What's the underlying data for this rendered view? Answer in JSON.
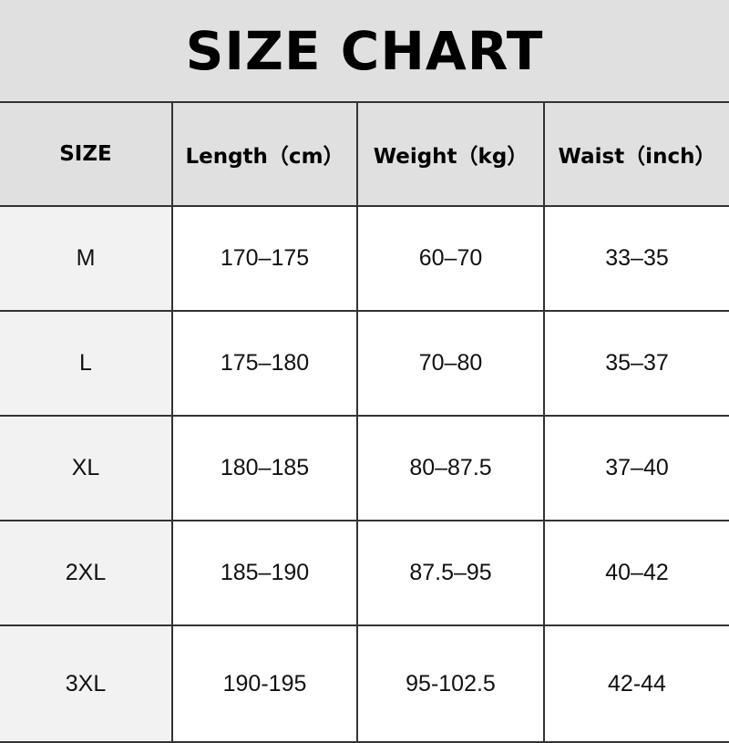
{
  "title": "SIZE CHART",
  "headers": [
    "SIZE",
    "Length（cm）",
    "Weight（kg）",
    "Waist（inch）"
  ],
  "rows": [
    [
      "M",
      "170–175",
      "60–70",
      "33–35"
    ],
    [
      "L",
      "175–180",
      "70–80",
      "35–37"
    ],
    [
      "XL",
      "180–185",
      "80–87.5",
      "37–40"
    ],
    [
      "2XL",
      "185–190",
      "87.5–95",
      "40–42"
    ],
    [
      "3XL",
      "190-195",
      "95-102.5",
      "42-44"
    ]
  ]
}
